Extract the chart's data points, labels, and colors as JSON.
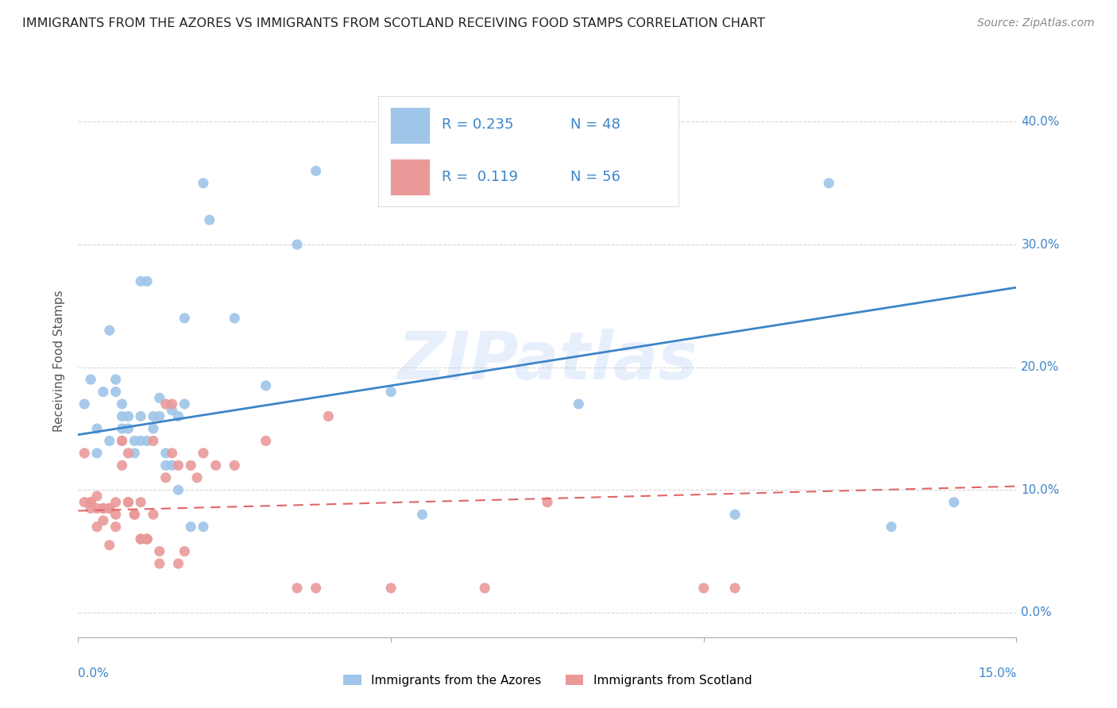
{
  "title": "IMMIGRANTS FROM THE AZORES VS IMMIGRANTS FROM SCOTLAND RECEIVING FOOD STAMPS CORRELATION CHART",
  "source": "Source: ZipAtlas.com",
  "ylabel": "Receiving Food Stamps",
  "right_yticks": [
    "40.0%",
    "30.0%",
    "20.0%",
    "10.0%",
    "0.0%"
  ],
  "right_ytick_vals": [
    0.4,
    0.3,
    0.2,
    0.1,
    0.0
  ],
  "xlim": [
    0.0,
    0.15
  ],
  "ylim": [
    -0.02,
    0.43
  ],
  "legend_r1": "R = 0.235",
  "legend_n1": "N = 48",
  "legend_r2": "R =  0.119",
  "legend_n2": "N = 56",
  "blue_color": "#9fc5e8",
  "pink_color": "#ea9999",
  "blue_line_color": "#3d85c8",
  "pink_line_color": "#e06666",
  "text_color_blue": "#3d85c8",
  "axis_label_color": "#3d85c8",
  "watermark_color": "#a4c2f4",
  "watermark": "ZIPatlas",
  "blue_scatter_x": [
    0.001,
    0.002,
    0.003,
    0.003,
    0.004,
    0.005,
    0.005,
    0.006,
    0.006,
    0.007,
    0.007,
    0.007,
    0.008,
    0.008,
    0.009,
    0.009,
    0.01,
    0.01,
    0.01,
    0.011,
    0.011,
    0.012,
    0.012,
    0.013,
    0.013,
    0.014,
    0.014,
    0.015,
    0.015,
    0.016,
    0.016,
    0.017,
    0.017,
    0.018,
    0.02,
    0.02,
    0.021,
    0.025,
    0.03,
    0.035,
    0.038,
    0.05,
    0.055,
    0.08,
    0.105,
    0.12,
    0.13,
    0.14
  ],
  "blue_scatter_y": [
    0.17,
    0.19,
    0.13,
    0.15,
    0.18,
    0.23,
    0.14,
    0.18,
    0.19,
    0.16,
    0.17,
    0.15,
    0.15,
    0.16,
    0.13,
    0.14,
    0.16,
    0.14,
    0.27,
    0.14,
    0.27,
    0.15,
    0.16,
    0.175,
    0.16,
    0.12,
    0.13,
    0.12,
    0.165,
    0.16,
    0.1,
    0.24,
    0.17,
    0.07,
    0.07,
    0.35,
    0.32,
    0.24,
    0.185,
    0.3,
    0.36,
    0.18,
    0.08,
    0.17,
    0.08,
    0.35,
    0.07,
    0.09
  ],
  "pink_scatter_x": [
    0.001,
    0.001,
    0.002,
    0.002,
    0.002,
    0.003,
    0.003,
    0.003,
    0.004,
    0.004,
    0.004,
    0.005,
    0.005,
    0.005,
    0.006,
    0.006,
    0.006,
    0.007,
    0.007,
    0.007,
    0.008,
    0.008,
    0.008,
    0.009,
    0.009,
    0.01,
    0.01,
    0.01,
    0.011,
    0.011,
    0.011,
    0.012,
    0.012,
    0.013,
    0.013,
    0.014,
    0.014,
    0.015,
    0.015,
    0.016,
    0.016,
    0.017,
    0.018,
    0.019,
    0.02,
    0.022,
    0.025,
    0.03,
    0.035,
    0.038,
    0.04,
    0.05,
    0.065,
    0.075,
    0.1,
    0.105
  ],
  "pink_scatter_y": [
    0.13,
    0.09,
    0.085,
    0.09,
    0.09,
    0.085,
    0.095,
    0.07,
    0.075,
    0.085,
    0.085,
    0.085,
    0.055,
    0.085,
    0.09,
    0.08,
    0.07,
    0.14,
    0.14,
    0.12,
    0.13,
    0.09,
    0.09,
    0.08,
    0.08,
    0.06,
    0.09,
    0.06,
    0.06,
    0.06,
    0.06,
    0.14,
    0.08,
    0.04,
    0.05,
    0.17,
    0.11,
    0.17,
    0.13,
    0.12,
    0.04,
    0.05,
    0.12,
    0.11,
    0.13,
    0.12,
    0.12,
    0.14,
    0.02,
    0.02,
    0.16,
    0.02,
    0.02,
    0.09,
    0.02,
    0.02
  ],
  "blue_trend_x": [
    0.0,
    0.15
  ],
  "blue_trend_y": [
    0.145,
    0.265
  ],
  "pink_trend_x": [
    0.0,
    0.15
  ],
  "pink_trend_y": [
    0.083,
    0.103
  ],
  "title_fontsize": 11.5,
  "source_fontsize": 10,
  "legend_fontsize": 13,
  "tick_fontsize": 11,
  "ylabel_fontsize": 11
}
